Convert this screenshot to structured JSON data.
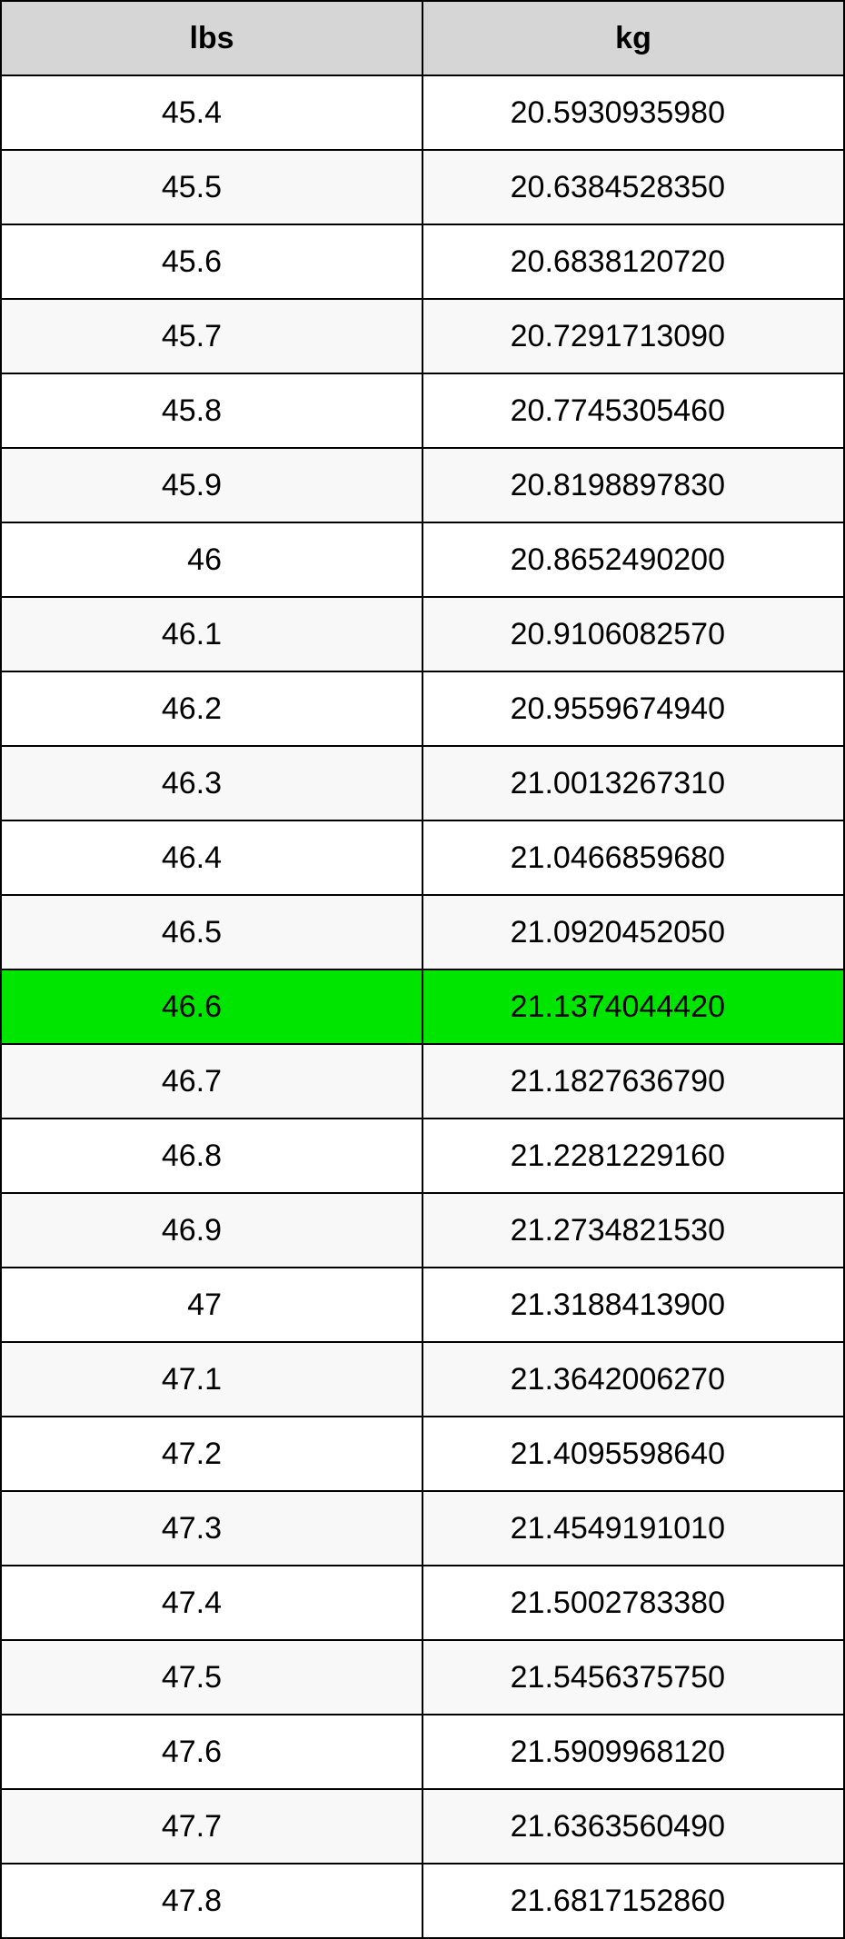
{
  "table": {
    "type": "table",
    "header_bg": "#d6d6d6",
    "row_bg_odd": "#ffffff",
    "row_bg_even": "#f8f8f8",
    "highlight_bg": "#00e500",
    "border_color": "#000000",
    "text_color": "#000000",
    "header_fontsize": 34,
    "cell_fontsize": 34,
    "columns": [
      {
        "key": "lbs",
        "label": "lbs"
      },
      {
        "key": "kg",
        "label": "kg"
      }
    ],
    "highlight_index": 12,
    "rows": [
      {
        "lbs": "45.4",
        "kg": "20.5930935980"
      },
      {
        "lbs": "45.5",
        "kg": "20.6384528350"
      },
      {
        "lbs": "45.6",
        "kg": "20.6838120720"
      },
      {
        "lbs": "45.7",
        "kg": "20.7291713090"
      },
      {
        "lbs": "45.8",
        "kg": "20.7745305460"
      },
      {
        "lbs": "45.9",
        "kg": "20.8198897830"
      },
      {
        "lbs": "46",
        "kg": "20.8652490200"
      },
      {
        "lbs": "46.1",
        "kg": "20.9106082570"
      },
      {
        "lbs": "46.2",
        "kg": "20.9559674940"
      },
      {
        "lbs": "46.3",
        "kg": "21.0013267310"
      },
      {
        "lbs": "46.4",
        "kg": "21.0466859680"
      },
      {
        "lbs": "46.5",
        "kg": "21.0920452050"
      },
      {
        "lbs": "46.6",
        "kg": "21.1374044420"
      },
      {
        "lbs": "46.7",
        "kg": "21.1827636790"
      },
      {
        "lbs": "46.8",
        "kg": "21.2281229160"
      },
      {
        "lbs": "46.9",
        "kg": "21.2734821530"
      },
      {
        "lbs": "47",
        "kg": "21.3188413900"
      },
      {
        "lbs": "47.1",
        "kg": "21.3642006270"
      },
      {
        "lbs": "47.2",
        "kg": "21.4095598640"
      },
      {
        "lbs": "47.3",
        "kg": "21.4549191010"
      },
      {
        "lbs": "47.4",
        "kg": "21.5002783380"
      },
      {
        "lbs": "47.5",
        "kg": "21.5456375750"
      },
      {
        "lbs": "47.6",
        "kg": "21.5909968120"
      },
      {
        "lbs": "47.7",
        "kg": "21.6363560490"
      },
      {
        "lbs": "47.8",
        "kg": "21.6817152860"
      }
    ]
  }
}
